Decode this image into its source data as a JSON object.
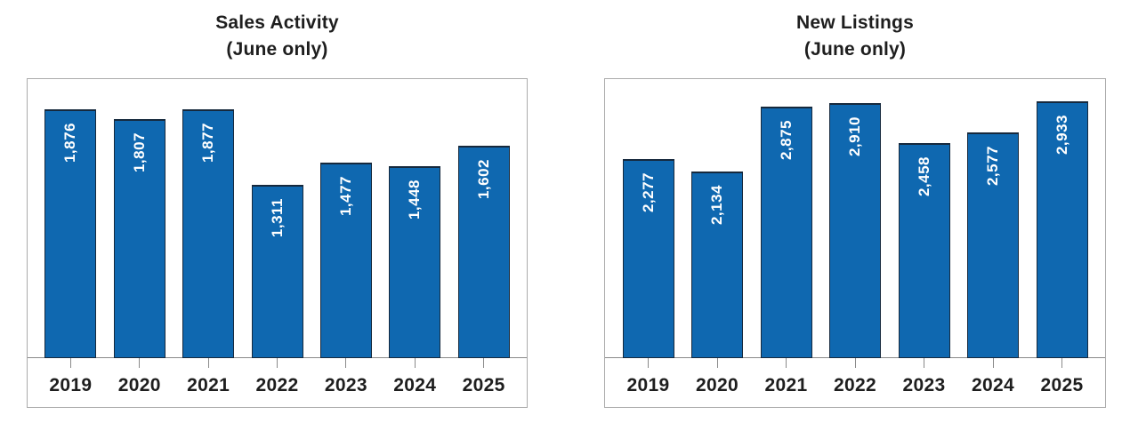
{
  "colors": {
    "background": "#FFFFFF",
    "bar_fill": "#0F68B0",
    "bar_border": "#16293D",
    "value_label": "#FFFFFF",
    "axis_line": "#8A8A8A",
    "frame_border": "#ABABAB",
    "text": "#1E1E1E"
  },
  "chart_data": [
    {
      "type": "bar",
      "title": "Sales Activity",
      "subtitle": "(June only)",
      "categories": [
        "2019",
        "2020",
        "2021",
        "2022",
        "2023",
        "2024",
        "2025"
      ],
      "values": [
        1876,
        1807,
        1877,
        1311,
        1477,
        1448,
        1602
      ],
      "value_labels": [
        "1,876",
        "1,807",
        "1,877",
        "1,311",
        "1,477",
        "1,448",
        "1,602"
      ],
      "xlabel": "",
      "ylabel": "",
      "ylim": [
        0,
        2100
      ],
      "grid": false,
      "legend": "none",
      "bar_orientation": "vertical",
      "value_label_rotation": -90,
      "value_label_position": "inside-top"
    },
    {
      "type": "bar",
      "title": "New Listings",
      "subtitle": "(June only)",
      "categories": [
        "2019",
        "2020",
        "2021",
        "2022",
        "2023",
        "2024",
        "2025"
      ],
      "values": [
        2277,
        2134,
        2875,
        2910,
        2458,
        2577,
        2933
      ],
      "value_labels": [
        "2,277",
        "2,134",
        "2,875",
        "2,910",
        "2,458",
        "2,577",
        "2,933"
      ],
      "xlabel": "",
      "ylabel": "",
      "ylim": [
        0,
        3175
      ],
      "grid": false,
      "legend": "none",
      "bar_orientation": "vertical",
      "value_label_rotation": -90,
      "value_label_position": "inside-top"
    }
  ]
}
